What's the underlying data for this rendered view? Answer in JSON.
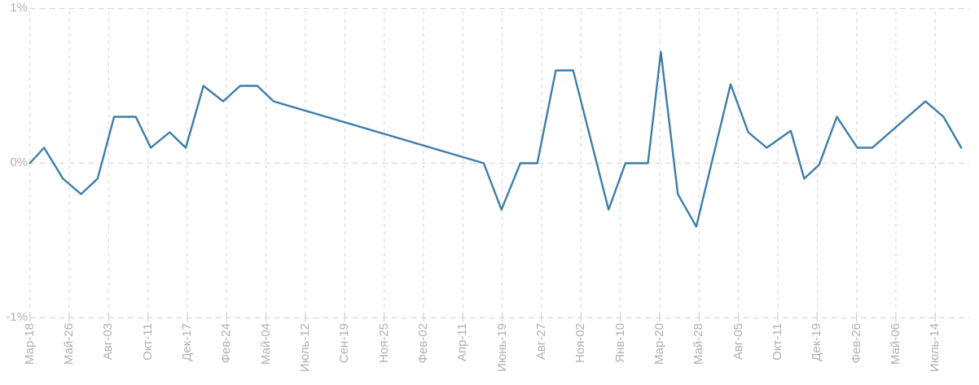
{
  "chart_data": {
    "type": "line",
    "title": "",
    "xlabel": "",
    "ylabel": "",
    "ylim": [
      -1,
      1
    ],
    "grid": "dashed light-gray; vertical line at every x tick, horizontal lines at each y tick",
    "legend": "none",
    "y_tick_labels": [
      "1%",
      "0%",
      "-1%"
    ],
    "y_tick_values": [
      1,
      0,
      -1
    ],
    "x_tick_labels": [
      "Мар-18",
      "Май-26",
      "Авг-03",
      "Окт-11",
      "Дек-17",
      "Фев-24",
      "Май-04",
      "Июль-12",
      "Сен-19",
      "Ноя-25",
      "Фев-02",
      "Апр-11",
      "Июнь-19",
      "Авг-27",
      "Ноя-02",
      "Янв-10",
      "Мар-20",
      "Май-28",
      "Авг-05",
      "Окт-11",
      "Дек-19",
      "Фев-26",
      "Май-06",
      "Июль-14"
    ],
    "points_note": "each point is [x, y]; x in x-tick-index units (0 = Мар-18 tick, 23 = Июль-14 tick), y in percent",
    "points": [
      [
        0.0,
        0.0
      ],
      [
        0.36,
        0.1
      ],
      [
        0.84,
        -0.1
      ],
      [
        1.3,
        -0.2
      ],
      [
        1.72,
        -0.1
      ],
      [
        2.14,
        0.3
      ],
      [
        2.69,
        0.3
      ],
      [
        3.07,
        0.1
      ],
      [
        3.55,
        0.2
      ],
      [
        3.96,
        0.1
      ],
      [
        4.41,
        0.5
      ],
      [
        4.91,
        0.4
      ],
      [
        5.34,
        0.5
      ],
      [
        5.78,
        0.5
      ],
      [
        6.19,
        0.4
      ],
      [
        11.53,
        0.0
      ],
      [
        11.98,
        -0.3
      ],
      [
        12.46,
        0.0
      ],
      [
        12.89,
        0.0
      ],
      [
        13.36,
        0.6
      ],
      [
        13.8,
        0.6
      ],
      [
        14.7,
        -0.3
      ],
      [
        15.13,
        0.0
      ],
      [
        15.7,
        0.0
      ],
      [
        16.03,
        0.72
      ],
      [
        16.46,
        -0.2
      ],
      [
        16.93,
        -0.41
      ],
      [
        17.8,
        0.51
      ],
      [
        18.25,
        0.2
      ],
      [
        18.72,
        0.1
      ],
      [
        19.33,
        0.21
      ],
      [
        19.67,
        -0.1
      ],
      [
        20.05,
        -0.01
      ],
      [
        20.5,
        0.3
      ],
      [
        21.02,
        0.1
      ],
      [
        21.4,
        0.1
      ],
      [
        22.75,
        0.4
      ],
      [
        23.21,
        0.3
      ],
      [
        23.66,
        0.1
      ]
    ]
  },
  "colors": {
    "line": "#3d7ea8",
    "gridline": "#d9d9d9",
    "axis_tick": "#d0d0d0",
    "label": "#b0b0b0",
    "background": "#ffffff"
  }
}
